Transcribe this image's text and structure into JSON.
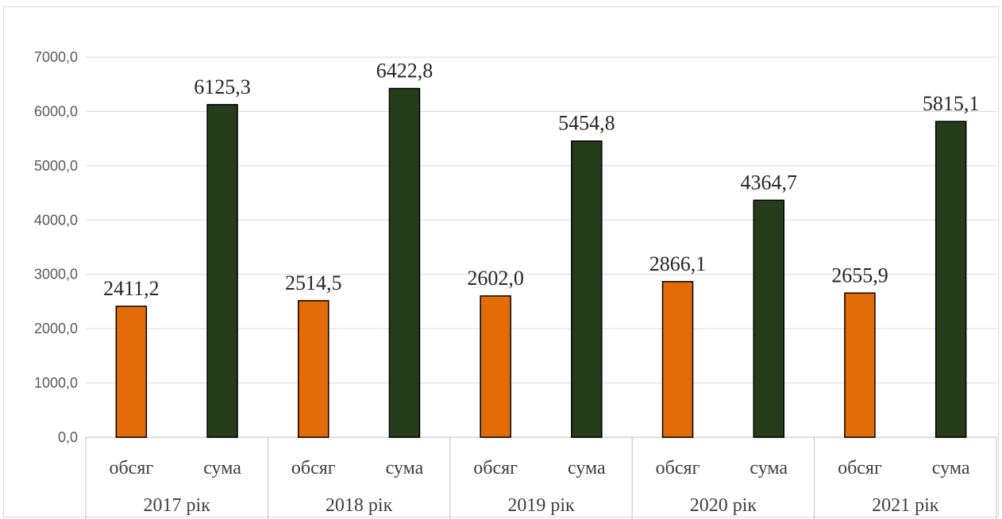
{
  "chart_data": {
    "type": "bar",
    "title": "",
    "xlabel": "",
    "ylabel": "",
    "ylim": [
      0,
      7000
    ],
    "yticks": [
      "0,0",
      "1000,0",
      "2000,0",
      "3000,0",
      "4000,0",
      "5000,0",
      "6000,0",
      "7000,0"
    ],
    "grid": true,
    "legend": "none",
    "groups": [
      "2017 рік",
      "2018 рік",
      "2019 рік",
      "2020 рік",
      "2021 рік"
    ],
    "categories": [
      "обсяг",
      "сума",
      "обсяг",
      "сума",
      "обсяг",
      "сума",
      "обсяг",
      "сума",
      "обсяг",
      "сума"
    ],
    "values": [
      2411.2,
      6125.3,
      2514.5,
      6422.8,
      2602.0,
      5454.8,
      2866.1,
      4364.7,
      2655.9,
      5815.1
    ],
    "data_labels": [
      "2411,2",
      "6125,3",
      "2514,5",
      "6422,8",
      "2602,0",
      "5454,8",
      "2866,1",
      "4364,7",
      "2655,9",
      "5815,1"
    ],
    "colors": {
      "обсяг": "#E36C09",
      "сума": "#263D1B"
    }
  }
}
